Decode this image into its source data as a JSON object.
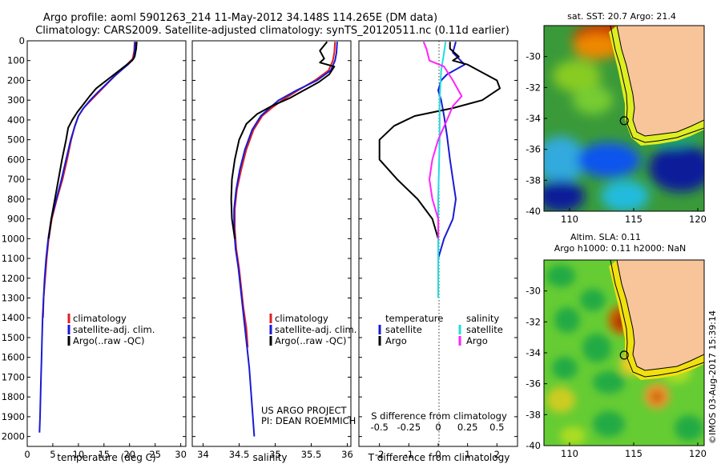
{
  "header": {
    "title_line1": "Argo profile: aoml 5901263_214 11-May-2012 34.148S 114.265E (DM data)",
    "title_line2": "Climatology: CARS2009. Satellite-adjusted climatology: synTS_20120511.nc (0.11d earlier)"
  },
  "colors": {
    "climatology": "#e02020",
    "satellite": "#1a1ad6",
    "argo": "#000000",
    "satellite_salinity": "#22dddd",
    "argo_salinity": "#ff22ff",
    "land": "#f8c49a"
  },
  "side_labels": {
    "project_line1": "US ARGO PROJECT",
    "project_line2": "PI: DEAN ROEMMICH",
    "footer": "©IMOS 03-Aug-2017 15:39:14"
  },
  "chart_data": [
    {
      "type": "line",
      "panel": "temperature",
      "xlabel": "temperature (deg C)",
      "xlim": [
        0,
        31
      ],
      "xticks": [
        "0",
        "5",
        "10",
        "15",
        "20",
        "25",
        "30"
      ],
      "ylim": [
        0,
        2050
      ],
      "yaxis_reversed": true,
      "yticks": [
        "0",
        "100",
        "200",
        "300",
        "400",
        "500",
        "600",
        "700",
        "800",
        "900",
        "1000",
        "1100",
        "1200",
        "1300",
        "1400",
        "1500",
        "1600",
        "1700",
        "1800",
        "1900",
        "2000"
      ],
      "legend": [
        "climatology",
        "satellite-adj. clim.",
        "Argo(..raw -QC)"
      ],
      "series": [
        {
          "name": "climatology",
          "color": "#e02020",
          "points": [
            [
              21,
              5
            ],
            [
              20.9,
              50
            ],
            [
              20.6,
              90
            ],
            [
              19.5,
              120
            ],
            [
              18.3,
              150
            ],
            [
              17,
              180
            ],
            [
              15.5,
              220
            ],
            [
              14,
              260
            ],
            [
              12.5,
              300
            ],
            [
              11,
              340
            ],
            [
              10,
              380
            ],
            [
              9.3,
              430
            ],
            [
              8.6,
              500
            ],
            [
              7.8,
              600
            ],
            [
              6.9,
              700
            ],
            [
              5.8,
              800
            ],
            [
              4.8,
              900
            ],
            [
              4.2,
              1000
            ],
            [
              3.8,
              1100
            ],
            [
              3.5,
              1200
            ],
            [
              3.2,
              1300
            ],
            [
              3.1,
              1400
            ]
          ]
        },
        {
          "name": "satellite-adj. clim.",
          "color": "#1a1ad6",
          "points": [
            [
              21.1,
              5
            ],
            [
              21,
              50
            ],
            [
              20.8,
              90
            ],
            [
              19.7,
              120
            ],
            [
              18.3,
              150
            ],
            [
              17,
              180
            ],
            [
              15.4,
              220
            ],
            [
              13.8,
              260
            ],
            [
              12.3,
              300
            ],
            [
              11,
              340
            ],
            [
              10,
              380
            ],
            [
              9.2,
              440
            ],
            [
              8.5,
              500
            ],
            [
              7.6,
              600
            ],
            [
              6.7,
              700
            ],
            [
              5.7,
              800
            ],
            [
              4.7,
              900
            ],
            [
              4.1,
              1000
            ],
            [
              3.7,
              1100
            ],
            [
              3.4,
              1200
            ],
            [
              3.2,
              1300
            ],
            [
              3,
              1400
            ],
            [
              2.9,
              1500
            ],
            [
              2.8,
              1600
            ],
            [
              2.7,
              1700
            ],
            [
              2.6,
              1800
            ],
            [
              2.5,
              1900
            ],
            [
              2.4,
              1980
            ]
          ]
        },
        {
          "name": "Argo(..raw -QC)",
          "color": "#000000",
          "points": [
            [
              21.4,
              5
            ],
            [
              21.3,
              40
            ],
            [
              21,
              80
            ],
            [
              20.5,
              100
            ],
            [
              19.5,
              120
            ],
            [
              18,
              150
            ],
            [
              16.5,
              180
            ],
            [
              15,
              210
            ],
            [
              13.5,
              240
            ],
            [
              12.2,
              280
            ],
            [
              11,
              320
            ],
            [
              9.8,
              360
            ],
            [
              8.8,
              400
            ],
            [
              8,
              440
            ],
            [
              7.6,
              500
            ],
            [
              6.8,
              600
            ],
            [
              6.1,
              700
            ],
            [
              5.4,
              800
            ],
            [
              4.7,
              900
            ],
            [
              4.2,
              1000
            ]
          ]
        }
      ]
    },
    {
      "type": "line",
      "panel": "salinity",
      "xlabel": "salinity",
      "xlim": [
        33.85,
        36.05
      ],
      "xticks": [
        "34",
        "34.5",
        "35",
        "35.5",
        "36"
      ],
      "ylim": [
        0,
        2050
      ],
      "yaxis_reversed": true,
      "legend": [
        "climatology",
        "satellite-adj. clim.",
        "Argo(..raw -QC)"
      ],
      "series": [
        {
          "name": "climatology",
          "color": "#e02020",
          "points": [
            [
              35.83,
              5
            ],
            [
              35.82,
              60
            ],
            [
              35.8,
              100
            ],
            [
              35.74,
              150
            ],
            [
              35.55,
              200
            ],
            [
              35.32,
              250
            ],
            [
              35.1,
              300
            ],
            [
              34.95,
              340
            ],
            [
              34.82,
              380
            ],
            [
              34.7,
              450
            ],
            [
              34.6,
              550
            ],
            [
              34.53,
              650
            ],
            [
              34.47,
              750
            ],
            [
              34.44,
              850
            ],
            [
              34.44,
              950
            ],
            [
              34.46,
              1050
            ],
            [
              34.5,
              1150
            ],
            [
              34.53,
              1250
            ],
            [
              34.56,
              1350
            ],
            [
              34.6,
              1450
            ],
            [
              34.62,
              1550
            ]
          ]
        },
        {
          "name": "satellite-adj. clim.",
          "color": "#1a1ad6",
          "points": [
            [
              35.86,
              5
            ],
            [
              35.85,
              60
            ],
            [
              35.83,
              100
            ],
            [
              35.77,
              150
            ],
            [
              35.58,
              200
            ],
            [
              35.3,
              250
            ],
            [
              35.05,
              300
            ],
            [
              34.92,
              340
            ],
            [
              34.8,
              380
            ],
            [
              34.68,
              450
            ],
            [
              34.58,
              550
            ],
            [
              34.51,
              650
            ],
            [
              34.46,
              750
            ],
            [
              34.43,
              850
            ],
            [
              34.43,
              950
            ],
            [
              34.45,
              1050
            ],
            [
              34.49,
              1150
            ],
            [
              34.52,
              1250
            ],
            [
              34.55,
              1350
            ],
            [
              34.58,
              1450
            ],
            [
              34.61,
              1550
            ],
            [
              34.64,
              1650
            ],
            [
              34.66,
              1750
            ],
            [
              34.68,
              1850
            ],
            [
              34.7,
              1950
            ],
            [
              34.71,
              2000
            ]
          ]
        },
        {
          "name": "Argo(..raw -QC)",
          "color": "#000000",
          "points": [
            [
              35.72,
              5
            ],
            [
              35.62,
              50
            ],
            [
              35.68,
              90
            ],
            [
              35.62,
              110
            ],
            [
              35.82,
              130
            ],
            [
              35.75,
              170
            ],
            [
              35.6,
              210
            ],
            [
              35.4,
              250
            ],
            [
              35.2,
              290
            ],
            [
              34.95,
              330
            ],
            [
              34.75,
              370
            ],
            [
              34.6,
              420
            ],
            [
              34.5,
              500
            ],
            [
              34.44,
              600
            ],
            [
              34.4,
              700
            ],
            [
              34.39,
              800
            ],
            [
              34.4,
              900
            ],
            [
              34.44,
              1000
            ]
          ]
        }
      ]
    },
    {
      "type": "line",
      "panel": "difference",
      "xlabel": "T difference from climatology",
      "x2label": "S difference from climatology",
      "xlim": [
        -2.7,
        2.7
      ],
      "xticks": [
        "-2",
        "-1",
        "0",
        "1",
        "2"
      ],
      "x2ticks": [
        "-0.5",
        "-0.25",
        "0",
        "0.25",
        "0.5"
      ],
      "ylim": [
        0,
        2050
      ],
      "yaxis_reversed": true,
      "legend_temperature": [
        "temperature",
        "satellite",
        "Argo"
      ],
      "legend_salinity": [
        "salinity",
        "satellite",
        "Argo"
      ],
      "series": [
        {
          "name": "satellite",
          "color": "#1a1ad6",
          "points": [
            [
              0.6,
              5
            ],
            [
              0.5,
              60
            ],
            [
              0.9,
              120
            ],
            [
              0.3,
              170
            ],
            [
              0.1,
              200
            ],
            [
              0,
              250
            ],
            [
              0.1,
              300
            ],
            [
              0.2,
              380
            ],
            [
              0.3,
              480
            ],
            [
              0.4,
              600
            ],
            [
              0.5,
              700
            ],
            [
              0.6,
              800
            ],
            [
              0.5,
              900
            ],
            [
              0.2,
              1000
            ],
            [
              0,
              1100
            ],
            [
              0,
              1300
            ]
          ]
        },
        {
          "name": "Argo",
          "color": "#000000",
          "points": [
            [
              0.4,
              5
            ],
            [
              0.4,
              40
            ],
            [
              0.7,
              80
            ],
            [
              0.5,
              100
            ],
            [
              1,
              120
            ],
            [
              2,
              200
            ],
            [
              2.1,
              240
            ],
            [
              1.5,
              300
            ],
            [
              0.5,
              340
            ],
            [
              -0.8,
              380
            ],
            [
              -1.5,
              430
            ],
            [
              -2,
              500
            ],
            [
              -2,
              600
            ],
            [
              -1.4,
              700
            ],
            [
              -0.7,
              800
            ],
            [
              -0.2,
              900
            ],
            [
              0,
              1000
            ]
          ]
        },
        {
          "name": "satellite",
          "color": "#22dddd",
          "points": [
            [
              0.25,
              5
            ],
            [
              0.2,
              60
            ],
            [
              0.1,
              150
            ],
            [
              0.05,
              300
            ],
            [
              0.05,
              500
            ],
            [
              0,
              800
            ],
            [
              0,
              1000
            ],
            [
              0,
              1300
            ]
          ]
        },
        {
          "name": "Argo",
          "color": "#ff22ff",
          "points": [
            [
              -0.5,
              5
            ],
            [
              -0.4,
              40
            ],
            [
              -0.3,
              100
            ],
            [
              0.2,
              130
            ],
            [
              0.5,
              200
            ],
            [
              0.8,
              280
            ],
            [
              0.5,
              330
            ],
            [
              0.3,
              400
            ],
            [
              0,
              500
            ],
            [
              -0.2,
              600
            ],
            [
              -0.3,
              700
            ],
            [
              -0.2,
              800
            ],
            [
              0,
              900
            ],
            [
              0,
              1000
            ]
          ]
        }
      ]
    },
    {
      "type": "heatmap",
      "panel": "map-sst",
      "title": "sat. SST: 20.7  Argo: 21.4",
      "xlim": [
        108,
        120.5
      ],
      "ylim": [
        -40,
        -28
      ],
      "xticks": [
        "110",
        "115",
        "120"
      ],
      "yticks": [
        "-30",
        "-32",
        "-34",
        "-36",
        "-38",
        "-40"
      ],
      "argo_marker": [
        114.265,
        -34.148
      ]
    },
    {
      "type": "heatmap",
      "panel": "map-sla",
      "title_line1": "Altim. SLA: 0.11",
      "title_line2": "Argo h1000: 0.11  h2000: NaN",
      "xlim": [
        108,
        120.5
      ],
      "ylim": [
        -40,
        -28
      ],
      "xticks": [
        "110",
        "115",
        "120"
      ],
      "yticks": [
        "-30",
        "-32",
        "-34",
        "-36",
        "-38",
        "-40"
      ],
      "argo_marker": [
        114.265,
        -34.148
      ]
    }
  ]
}
